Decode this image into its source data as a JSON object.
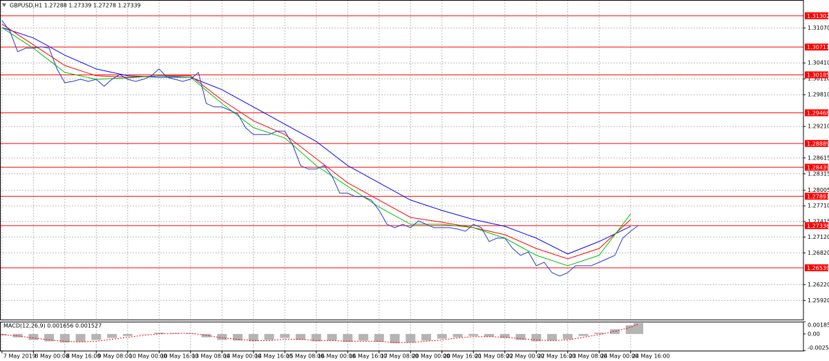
{
  "chart_data": [
    {
      "type": "line",
      "title": "GBPUSD,H1  1.27288 1.27339 1.27278 1.27339",
      "xlim": [
        -1,
        408
      ],
      "xticks": [
        {
          "value": 0,
          "label": "7 May 2019"
        },
        {
          "value": 16,
          "label": "8 May 00:00"
        },
        {
          "value": 32,
          "label": "8 May 16:00"
        },
        {
          "value": 48,
          "label": "9 May 08:00"
        },
        {
          "value": 64,
          "label": "10 May 00:00"
        },
        {
          "value": 80,
          "label": "10 May 16:00"
        },
        {
          "value": 96,
          "label": "13 May 08:00"
        },
        {
          "value": 112,
          "label": "14 May 00:00"
        },
        {
          "value": 128,
          "label": "14 May 16:00"
        },
        {
          "value": 144,
          "label": "15 May 08:00"
        },
        {
          "value": 160,
          "label": "16 May 00:00"
        },
        {
          "value": 176,
          "label": "16 May 16:00"
        },
        {
          "value": 192,
          "label": "17 May 08:00"
        },
        {
          "value": 208,
          "label": "20 May 00:00"
        },
        {
          "value": 224,
          "label": "20 May 16:00"
        },
        {
          "value": 240,
          "label": "21 May 08:00"
        },
        {
          "value": 256,
          "label": "22 May 00:00"
        },
        {
          "value": 272,
          "label": "22 May 16:00"
        },
        {
          "value": 288,
          "label": "23 May 08:00"
        },
        {
          "value": 304,
          "label": "24 May 00:00"
        },
        {
          "value": 320,
          "label": "24 May 16:00"
        }
      ],
      "ylim": [
        1.2556,
        1.316
      ],
      "yticks": [
        {
          "value": 1.3107,
          "label": "1.31070"
        },
        {
          "value": 1.3041,
          "label": "1.30410"
        },
        {
          "value": 1.3011,
          "label": "1.30110"
        },
        {
          "value": 1.2981,
          "label": "1.29810"
        },
        {
          "value": 1.2921,
          "label": "1.29210"
        },
        1.28615,
        1.28315,
        1.28005,
        {
          "value": 1.2771,
          "label": "1.27710"
        },
        1.27415,
        {
          "value": 1.2712,
          "label": "1.27120"
        },
        {
          "value": 1.2682,
          "label": "1.26820"
        },
        {
          "value": 1.2622,
          "label": "1.26220"
        },
        {
          "value": 1.2592,
          "label": "1.25920"
        }
      ],
      "grid": true,
      "levels": {
        "color": "#ff0000",
        "values": [
          1.31302,
          1.30711,
          1.30185,
          1.29468,
          1.28889,
          1.28439,
          1.27891,
          1.27336,
          1.26539
        ]
      },
      "series": [
        {
          "color": "#0000ff",
          "x": [
            0,
            16,
            32,
            48,
            64,
            80,
            96,
            112,
            128,
            144,
            160,
            176,
            192,
            208,
            224,
            240,
            256,
            272,
            288,
            304,
            320
          ],
          "values": [
            1.3108,
            1.30884,
            1.30558,
            1.30297,
            1.30167,
            1.3014,
            1.3014,
            1.29906,
            1.29579,
            1.29253,
            1.28927,
            1.2847,
            1.28144,
            1.27818,
            1.27622,
            1.27452,
            1.27322,
            1.271,
            1.268,
            1.27035,
            1.27322
          ]
        },
        {
          "color": "#ff0000",
          "x": [
            0,
            16,
            32,
            48,
            64,
            80,
            96,
            112,
            128,
            144,
            160,
            176,
            192,
            208,
            224,
            240,
            256,
            272,
            288,
            304,
            320
          ],
          "values": [
            1.31145,
            1.30754,
            1.30362,
            1.30167,
            1.3014,
            1.30167,
            1.30167,
            1.2971,
            1.29318,
            1.29057,
            1.28601,
            1.28144,
            1.27818,
            1.27491,
            1.274,
            1.27296,
            1.27165,
            1.26904,
            1.26708,
            1.26904,
            1.27452
          ]
        },
        {
          "color": "#00c000",
          "x": [
            0,
            16,
            32,
            48,
            64,
            80,
            96,
            112,
            128,
            144,
            160,
            176,
            192,
            208,
            224,
            240,
            256,
            272,
            288,
            304,
            320
          ],
          "values": [
            1.3108,
            1.30689,
            1.30232,
            1.30101,
            1.30127,
            1.30167,
            1.3014,
            1.29645,
            1.29188,
            1.28992,
            1.2847,
            1.28079,
            1.27687,
            1.27361,
            1.27361,
            1.27296,
            1.271,
            1.26774,
            1.26578,
            1.26774,
            1.27557
          ]
        },
        {
          "color": "#2038c8",
          "x": [
            0,
            4,
            8,
            12,
            16,
            20,
            24,
            28,
            32,
            36,
            40,
            44,
            48,
            52,
            56,
            60,
            64,
            68,
            72,
            76,
            80,
            84,
            88,
            92,
            96,
            100,
            104,
            108,
            112,
            116,
            120,
            124,
            128,
            132,
            136,
            140,
            144,
            148,
            152,
            156,
            160,
            164,
            168,
            172,
            176,
            180,
            184,
            188,
            192,
            196,
            200,
            204,
            208,
            212,
            216,
            220,
            224,
            228,
            232,
            236,
            240,
            244,
            248,
            252,
            256,
            260,
            264,
            268,
            272,
            276,
            280,
            284,
            288,
            292,
            296,
            300,
            304,
            308,
            312,
            316,
            320,
            324
          ],
          "values": [
            1.31211,
            1.31015,
            1.30623,
            1.30689,
            1.30689,
            1.30715,
            1.30689,
            1.30297,
            1.30036,
            1.30062,
            1.30101,
            1.30062,
            1.30101,
            1.29971,
            1.30101,
            1.30193,
            1.30101,
            1.30062,
            1.30101,
            1.30167,
            1.30297,
            1.3014,
            1.30101,
            1.30062,
            1.30101,
            1.30232,
            1.29645,
            1.29579,
            1.29579,
            1.29514,
            1.29449,
            1.29188,
            1.29057,
            1.29057,
            1.29057,
            1.29122,
            1.29122,
            1.28862,
            1.2847,
            1.28405,
            1.28405,
            1.2847,
            1.28274,
            1.27948,
            1.27948,
            1.27883,
            1.27883,
            1.27818,
            1.27622,
            1.27361,
            1.27296,
            1.27361,
            1.27296,
            1.27426,
            1.27361,
            1.27296,
            1.27296,
            1.27296,
            1.2727,
            1.2723,
            1.27361,
            1.27296,
            1.27035,
            1.271,
            1.271,
            1.26904,
            1.26774,
            1.26839,
            1.26578,
            1.26643,
            1.26447,
            1.26382,
            1.26447,
            1.26578,
            1.26578,
            1.26578,
            1.26643,
            1.26708,
            1.26774,
            1.271,
            1.2723,
            1.27339
          ]
        }
      ]
    },
    {
      "type": "macd",
      "title": "MACD(12,26,9) 0.001656 0.001527",
      "xlim": [
        -1,
        408
      ],
      "ylim": [
        -0.002515,
        0.001855
      ],
      "yticks": [
        0.001855,
        {
          "value": 0,
          "label": "0.00"
        },
        -0.002515
      ],
      "series": [
        {
          "type": "bar",
          "color": "#b4b4b4",
          "x": [
            0,
            8,
            16,
            24,
            32,
            40,
            48,
            56,
            64,
            72,
            80,
            88,
            96,
            104,
            112,
            120,
            128,
            136,
            144,
            152,
            160,
            168,
            176,
            184,
            192,
            200,
            208,
            216,
            224,
            232,
            240,
            248,
            256,
            264,
            272,
            280,
            288,
            296,
            304,
            312,
            320,
            324
          ],
          "values": [
            -0.0002,
            -0.0005,
            -0.0009,
            -0.0011,
            -0.0013,
            -0.0012,
            -0.0009,
            -0.0006,
            -0.0003,
            0,
            0.0002,
            0.0001,
            0.0001,
            -0.0005,
            -0.0009,
            -0.001,
            -0.0011,
            -0.0009,
            -0.0006,
            -0.0009,
            -0.0011,
            -0.001,
            -0.0012,
            -0.001,
            -0.0012,
            -0.0014,
            -0.0013,
            -0.001,
            -0.0007,
            -0.0005,
            -0.0003,
            -0.0004,
            -0.0006,
            -0.0009,
            -0.0011,
            -0.001,
            -0.0008,
            -0.0003,
            0.0002,
            0.0007,
            0.0013,
            0.001656
          ]
        },
        {
          "type": "line",
          "color": "#ff0000",
          "dotted": true,
          "x": [
            0,
            8,
            16,
            24,
            32,
            40,
            48,
            56,
            64,
            72,
            80,
            88,
            96,
            104,
            112,
            120,
            128,
            136,
            144,
            152,
            160,
            168,
            176,
            184,
            192,
            200,
            208,
            216,
            224,
            232,
            240,
            248,
            256,
            264,
            272,
            280,
            288,
            296,
            304,
            312,
            320,
            324
          ],
          "values": [
            -0.0001,
            -0.0003,
            -0.0006,
            -0.0009,
            -0.0011,
            -0.0012,
            -0.0011,
            -0.0008,
            -0.0005,
            -0.0002,
            0,
            0.0001,
            0.0001,
            -0.0002,
            -0.0006,
            -0.0008,
            -0.001,
            -0.001,
            -0.0008,
            -0.0008,
            -0.001,
            -0.001,
            -0.0011,
            -0.0011,
            -0.0011,
            -0.0013,
            -0.0013,
            -0.0011,
            -0.0009,
            -0.0006,
            -0.0004,
            -0.0004,
            -0.0005,
            -0.0007,
            -0.0009,
            -0.001,
            -0.0009,
            -0.0005,
            -0.0001,
            0.0004,
            0.001,
            0.001527
          ]
        }
      ]
    }
  ]
}
